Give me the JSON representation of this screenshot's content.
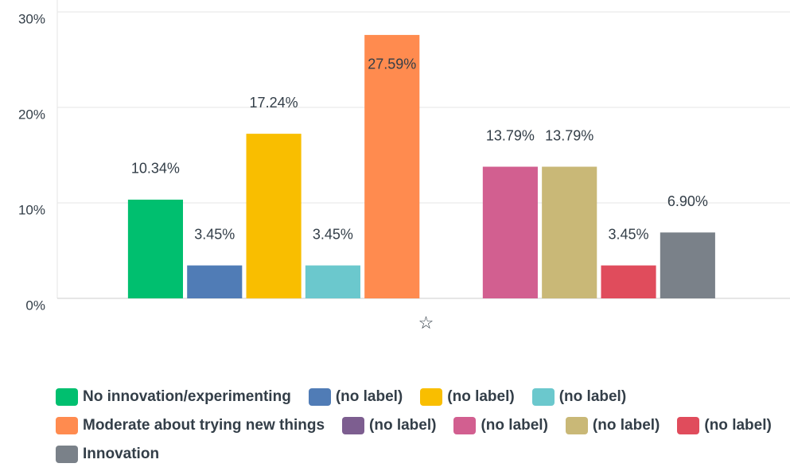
{
  "chart_data": {
    "type": "bar",
    "categories": [
      "☆"
    ],
    "series": [
      {
        "name": "No innovation/experimenting",
        "color": "#00bf6f",
        "values": [
          10.34
        ],
        "value_labels": [
          "10.34%"
        ]
      },
      {
        "name": "(no label)",
        "color": "#507cb6",
        "values": [
          3.45
        ],
        "value_labels": [
          "3.45%"
        ]
      },
      {
        "name": "(no label)",
        "color": "#f9be00",
        "values": [
          17.24
        ],
        "value_labels": [
          "17.24%"
        ]
      },
      {
        "name": "(no label)",
        "color": "#6bc8cd",
        "values": [
          3.45
        ],
        "value_labels": [
          "3.45%"
        ]
      },
      {
        "name": "Moderate about trying new things",
        "color": "#ff8b4f",
        "values": [
          27.59
        ],
        "value_labels": [
          "27.59%"
        ]
      },
      {
        "name": "(no label)",
        "color": "#7d5e90",
        "values": [
          0
        ],
        "value_labels": [
          null
        ]
      },
      {
        "name": "(no label)",
        "color": "#d25f90",
        "values": [
          13.79
        ],
        "value_labels": [
          "13.79%"
        ]
      },
      {
        "name": "(no label)",
        "color": "#c9b877",
        "values": [
          13.79
        ],
        "value_labels": [
          "13.79%"
        ]
      },
      {
        "name": "(no label)",
        "color": "#e04c5c",
        "values": [
          3.45
        ],
        "value_labels": [
          "3.45%"
        ]
      },
      {
        "name": "Innovation",
        "color": "#7a8189",
        "values": [
          6.9
        ],
        "value_labels": [
          "6.90%"
        ]
      }
    ],
    "ylim": [
      0,
      30
    ],
    "yticks": [
      {
        "value": 0,
        "label": "0%"
      },
      {
        "value": 10,
        "label": "10%"
      },
      {
        "value": 20,
        "label": "20%"
      },
      {
        "value": 30,
        "label": "30%"
      }
    ],
    "grid": true
  }
}
